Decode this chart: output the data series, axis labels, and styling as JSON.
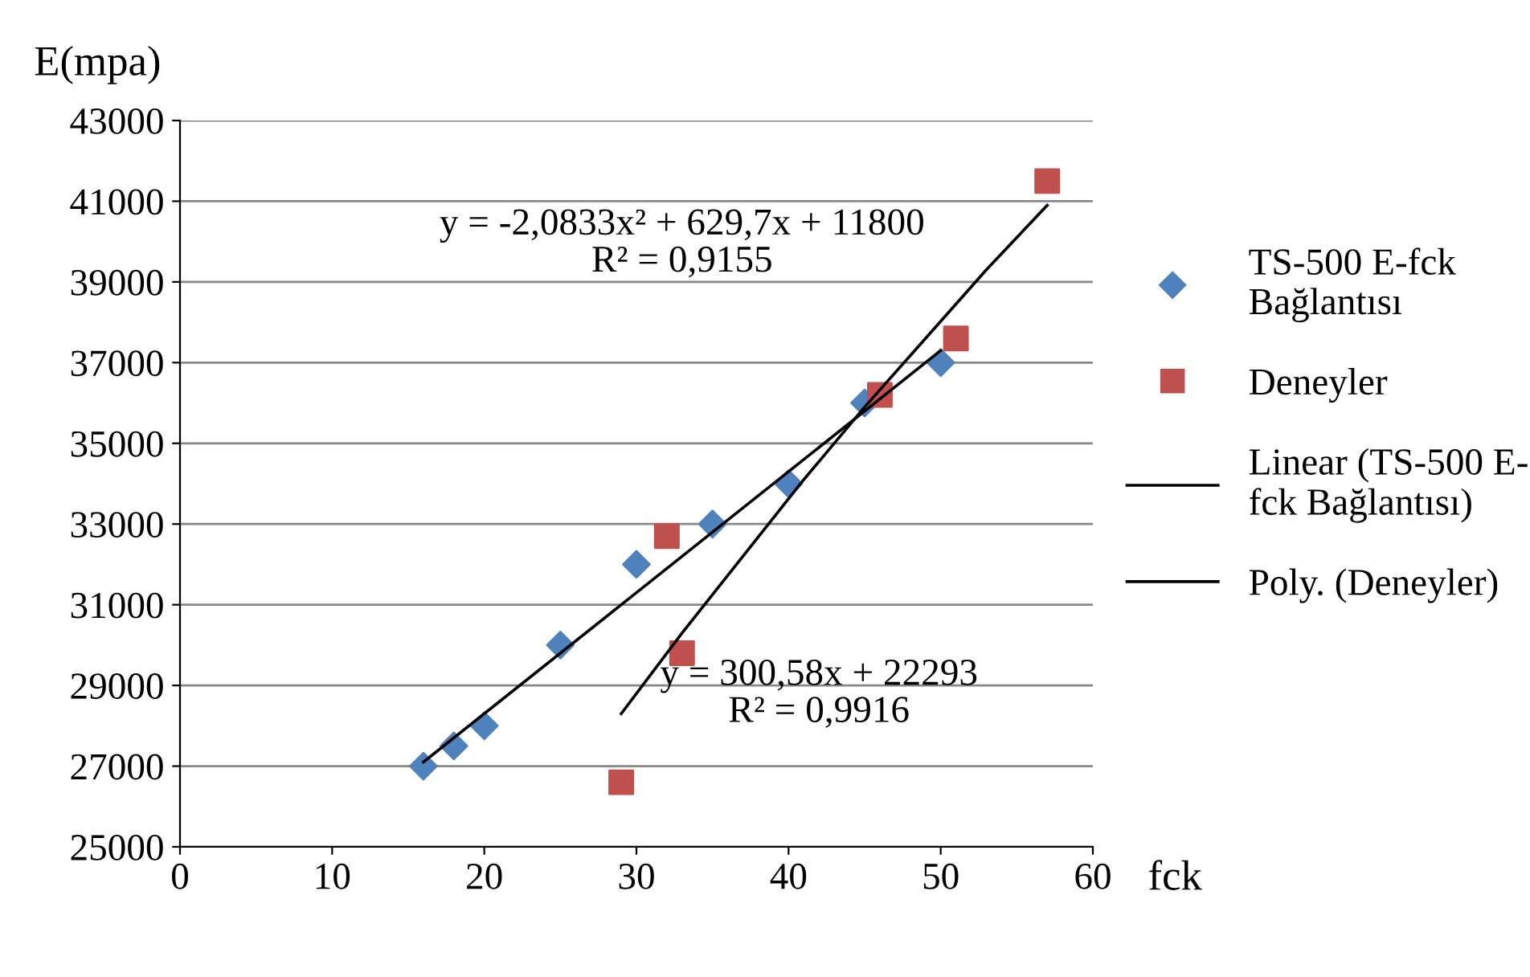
{
  "chart_data": {
    "type": "scatter",
    "xlabel": "fck",
    "ylabel": "E(mpa)",
    "xlim": [
      0,
      60
    ],
    "xticks": [
      0,
      10,
      20,
      30,
      40,
      50,
      60
    ],
    "ylim": [
      25000,
      43000
    ],
    "yticks": [
      25000,
      27000,
      29000,
      31000,
      33000,
      35000,
      37000,
      39000,
      41000,
      43000
    ],
    "grid": "y",
    "legend": "right",
    "series": [
      {
        "name": "TS-500 E-fck Bağlantısı",
        "color": "#4f81bd",
        "marker": "diamond",
        "x": [
          16,
          18,
          20,
          25,
          30,
          35,
          40,
          45,
          50
        ],
        "values": [
          27000,
          27500,
          28000,
          30000,
          32000,
          33000,
          34000,
          36000,
          37000
        ]
      },
      {
        "name": "Deneyler",
        "color": "#c0504d",
        "marker": "square",
        "x": [
          29,
          32,
          33,
          46,
          51,
          57
        ],
        "values": [
          26600,
          32700,
          29800,
          36200,
          37600,
          41500
        ]
      },
      {
        "name": "Linear (TS-500 E-fck Bağlantısı)",
        "type": "line",
        "color": "#000000",
        "x": [
          16,
          50
        ],
        "values": [
          27100,
          37300
        ]
      },
      {
        "name": "Poly. (Deneyler)",
        "type": "line",
        "color": "#000000",
        "x": [
          29,
          33,
          37,
          41,
          45,
          49,
          53,
          57
        ],
        "values": [
          28300,
          30300,
          32200,
          34100,
          35900,
          37600,
          39300,
          40900
        ]
      }
    ],
    "annotations": [
      "y = -2,0833x² + 629,7x + 11800\nR² = 0,9155",
      "y = 300,58x + 22293\nR² = 0,9916"
    ]
  }
}
